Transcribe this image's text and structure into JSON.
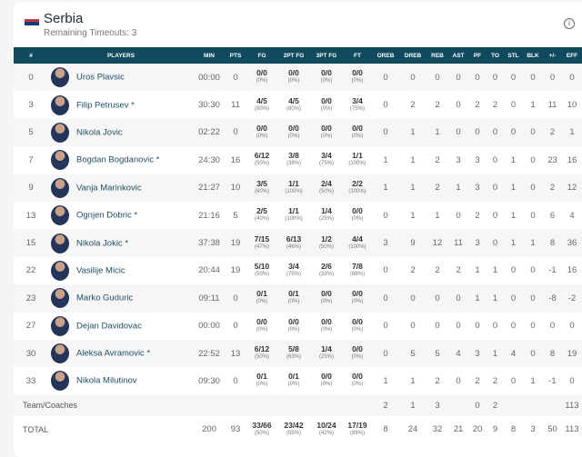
{
  "team": {
    "name": "Serbia",
    "timeouts": "Remaining Timeouts: 3",
    "flag_colors": [
      "#c6363c",
      "#0c4076",
      "#ffffff"
    ]
  },
  "columns": [
    "#",
    "PLAYERS",
    "MIN",
    "PTS",
    "FG",
    "2PT FG",
    "3PT FG",
    "FT",
    "OREB",
    "DREB",
    "REB",
    "AST",
    "PF",
    "TO",
    "STL",
    "BLK",
    "+/-",
    "EFF"
  ],
  "players": [
    {
      "num": "0",
      "name": "Uros Plavsic",
      "min": "00:00",
      "pts": "0",
      "fg": [
        "0/0",
        "(0%)"
      ],
      "fg2": [
        "0/0",
        "(0%)"
      ],
      "fg3": [
        "0/0",
        "(0%)"
      ],
      "ft": [
        "0/0",
        "(0%)"
      ],
      "rest": [
        "0",
        "0",
        "0",
        "0",
        "0",
        "0",
        "0",
        "0",
        "0",
        "0"
      ]
    },
    {
      "num": "3",
      "name": "Filip Petrusev *",
      "min": "30:30",
      "pts": "11",
      "fg": [
        "4/5",
        "(80%)"
      ],
      "fg2": [
        "4/5",
        "(80%)"
      ],
      "fg3": [
        "0/0",
        "(0%)"
      ],
      "ft": [
        "3/4",
        "(75%)"
      ],
      "rest": [
        "0",
        "2",
        "2",
        "0",
        "2",
        "2",
        "0",
        "1",
        "11",
        "10"
      ]
    },
    {
      "num": "5",
      "name": "Nikola Jovic",
      "min": "02:22",
      "pts": "0",
      "fg": [
        "0/0",
        "(0%)"
      ],
      "fg2": [
        "0/0",
        "(0%)"
      ],
      "fg3": [
        "0/0",
        "(0%)"
      ],
      "ft": [
        "0/0",
        "(0%)"
      ],
      "rest": [
        "0",
        "1",
        "1",
        "0",
        "0",
        "0",
        "0",
        "0",
        "2",
        "1"
      ]
    },
    {
      "num": "7",
      "name": "Bogdan Bogdanovic *",
      "min": "24:30",
      "pts": "16",
      "fg": [
        "6/12",
        "(50%)"
      ],
      "fg2": [
        "3/8",
        "(38%)"
      ],
      "fg3": [
        "3/4",
        "(75%)"
      ],
      "ft": [
        "1/1",
        "(100%)"
      ],
      "rest": [
        "1",
        "1",
        "2",
        "3",
        "3",
        "0",
        "1",
        "0",
        "23",
        "16"
      ]
    },
    {
      "num": "9",
      "name": "Vanja Marinkovic",
      "min": "21:27",
      "pts": "10",
      "fg": [
        "3/5",
        "(60%)"
      ],
      "fg2": [
        "1/1",
        "(100%)"
      ],
      "fg3": [
        "2/4",
        "(50%)"
      ],
      "ft": [
        "2/2",
        "(100%)"
      ],
      "rest": [
        "1",
        "1",
        "2",
        "1",
        "3",
        "0",
        "1",
        "0",
        "2",
        "12"
      ]
    },
    {
      "num": "13",
      "name": "Ognjen Dobric *",
      "min": "21:16",
      "pts": "5",
      "fg": [
        "2/5",
        "(40%)"
      ],
      "fg2": [
        "1/1",
        "(100%)"
      ],
      "fg3": [
        "1/4",
        "(25%)"
      ],
      "ft": [
        "0/0",
        "(0%)"
      ],
      "rest": [
        "0",
        "1",
        "1",
        "0",
        "2",
        "0",
        "1",
        "0",
        "6",
        "4"
      ]
    },
    {
      "num": "15",
      "name": "Nikola Jokic *",
      "min": "37:38",
      "pts": "19",
      "fg": [
        "7/15",
        "(47%)"
      ],
      "fg2": [
        "6/13",
        "(46%)"
      ],
      "fg3": [
        "1/2",
        "(50%)"
      ],
      "ft": [
        "4/4",
        "(100%)"
      ],
      "rest": [
        "3",
        "9",
        "12",
        "11",
        "3",
        "0",
        "1",
        "1",
        "8",
        "36"
      ]
    },
    {
      "num": "22",
      "name": "Vasilije Micic",
      "min": "20:44",
      "pts": "19",
      "fg": [
        "5/10",
        "(50%)"
      ],
      "fg2": [
        "3/4",
        "(75%)"
      ],
      "fg3": [
        "2/6",
        "(33%)"
      ],
      "ft": [
        "7/8",
        "(88%)"
      ],
      "rest": [
        "0",
        "2",
        "2",
        "2",
        "1",
        "1",
        "0",
        "0",
        "-1",
        "16"
      ]
    },
    {
      "num": "23",
      "name": "Marko Guduric",
      "min": "09:11",
      "pts": "0",
      "fg": [
        "0/1",
        "(0%)"
      ],
      "fg2": [
        "0/1",
        "(0%)"
      ],
      "fg3": [
        "0/0",
        "(0%)"
      ],
      "ft": [
        "0/0",
        "(0%)"
      ],
      "rest": [
        "0",
        "0",
        "0",
        "0",
        "1",
        "1",
        "0",
        "0",
        "-8",
        "-2"
      ]
    },
    {
      "num": "27",
      "name": "Dejan Davidovac",
      "min": "00:00",
      "pts": "0",
      "fg": [
        "0/0",
        "(0%)"
      ],
      "fg2": [
        "0/0",
        "(0%)"
      ],
      "fg3": [
        "0/0",
        "(0%)"
      ],
      "ft": [
        "0/0",
        "(0%)"
      ],
      "rest": [
        "0",
        "0",
        "0",
        "0",
        "0",
        "0",
        "0",
        "0",
        "0",
        "0"
      ]
    },
    {
      "num": "30",
      "name": "Aleksa Avramovic *",
      "min": "22:52",
      "pts": "13",
      "fg": [
        "6/12",
        "(50%)"
      ],
      "fg2": [
        "5/8",
        "(63%)"
      ],
      "fg3": [
        "1/4",
        "(25%)"
      ],
      "ft": [
        "0/0",
        "(0%)"
      ],
      "rest": [
        "0",
        "5",
        "5",
        "4",
        "3",
        "1",
        "4",
        "0",
        "8",
        "19"
      ]
    },
    {
      "num": "33",
      "name": "Nikola Milutinov",
      "min": "09:30",
      "pts": "0",
      "fg": [
        "0/1",
        "(0%)"
      ],
      "fg2": [
        "0/1",
        "(0%)"
      ],
      "fg3": [
        "0/0",
        "(0%)"
      ],
      "ft": [
        "0/0",
        "(0%)"
      ],
      "rest": [
        "1",
        "1",
        "2",
        "0",
        "2",
        "2",
        "0",
        "1",
        "-1",
        "0"
      ]
    }
  ],
  "team_row": {
    "label": "Team/Coaches",
    "rest": [
      "2",
      "1",
      "3",
      "",
      "0",
      "2",
      "",
      "",
      "",
      "113"
    ]
  },
  "total_row": {
    "label": "TOTAL",
    "min": "200",
    "pts": "93",
    "fg": [
      "33/66",
      "(50%)"
    ],
    "fg2": [
      "23/42",
      "(55%)"
    ],
    "fg3": [
      "10/24",
      "(42%)"
    ],
    "ft": [
      "17/19",
      "(89%)"
    ],
    "rest": [
      "8",
      "24",
      "32",
      "21",
      "20",
      "9",
      "8",
      "3",
      "50",
      "113"
    ]
  }
}
